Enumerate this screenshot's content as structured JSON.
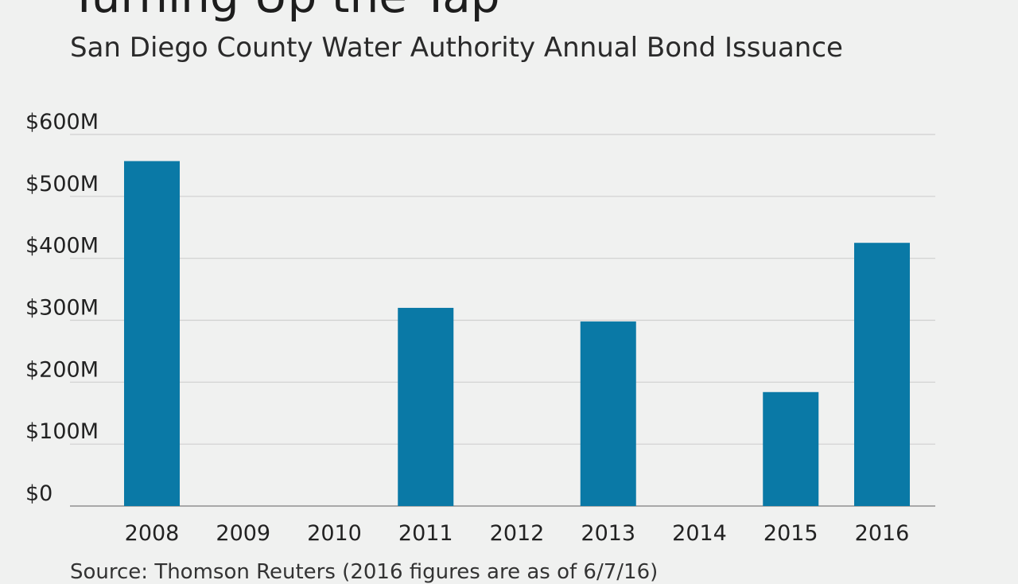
{
  "chart_data": {
    "type": "bar",
    "title": "Turning Up the Tap",
    "subtitle": "San Diego County Water Authority Annual Bond Issuance",
    "categories": [
      "2008",
      "2009",
      "2010",
      "2011",
      "2012",
      "2013",
      "2014",
      "2015",
      "2016"
    ],
    "values": [
      557,
      0,
      0,
      320,
      0,
      298,
      0,
      184,
      425
    ],
    "unit": "$M",
    "ylim": [
      0,
      600
    ],
    "yticks": [
      0,
      100,
      200,
      300,
      400,
      500,
      600
    ],
    "ytick_labels": [
      "$0",
      "$100M",
      "$200M",
      "$300M",
      "$400M",
      "$500M",
      "$600M"
    ],
    "grid": true,
    "bar_color": "#0a79a6",
    "source": "Source: Thomson Reuters (2016 figures are as of 6/7/16)"
  }
}
